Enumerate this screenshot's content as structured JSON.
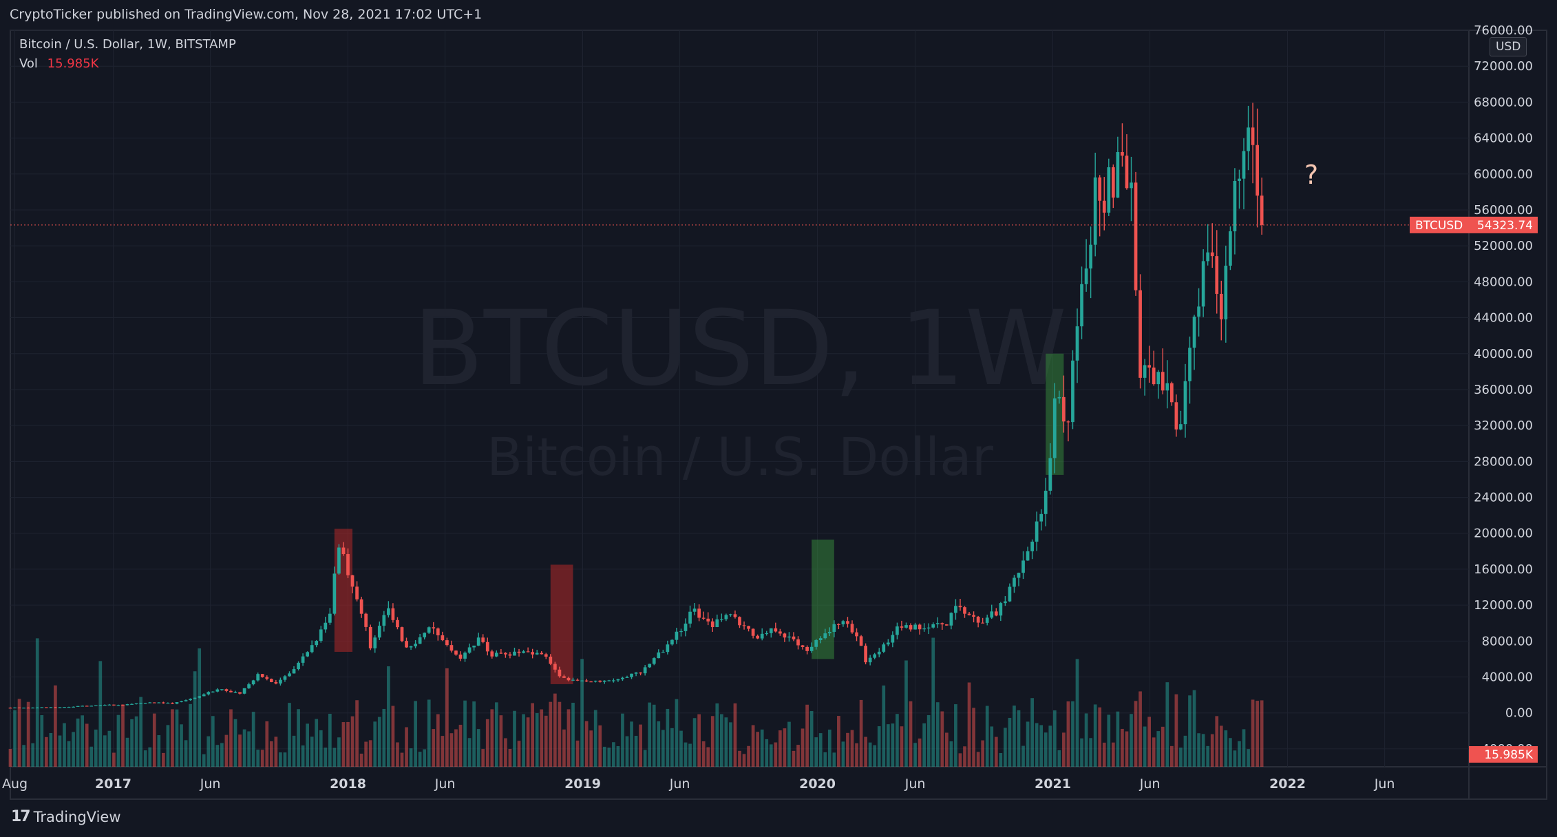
{
  "publisher_line": "CryptoTicker published on TradingView.com, Nov 28, 2021 17:02 UTC+1",
  "legend": {
    "symbol_line": "Bitcoin / U.S. Dollar, 1W, BITSTAMP",
    "vol_label": "Vol",
    "vol_value": "15.985K"
  },
  "currency_button": "USD",
  "watermark": {
    "line1": "BTCUSD, 1W",
    "line2": "Bitcoin / U.S. Dollar"
  },
  "footer_logo": "TradingView",
  "colors": {
    "up": "#26a69a",
    "down": "#ef5350",
    "background": "#131722",
    "text": "#d1d4dc",
    "grid": "#1e2330"
  },
  "chart_data": {
    "type": "candlestick",
    "price_axis": {
      "ticks": [
        "76000.00",
        "72000.00",
        "68000.00",
        "64000.00",
        "60000.00",
        "56000.00",
        "52000.00",
        "48000.00",
        "44000.00",
        "40000.00",
        "36000.00",
        "32000.00",
        "28000.00",
        "24000.00",
        "20000.00",
        "16000.00",
        "12000.00",
        "8000.00",
        "4000.00",
        "0.00",
        "-4000.00"
      ],
      "range": [
        -6000,
        76000
      ]
    },
    "time_axis": {
      "labels": [
        {
          "text": "Aug",
          "date": "2016-08-01",
          "bold": false
        },
        {
          "text": "2017",
          "date": "2017-01-01",
          "bold": true
        },
        {
          "text": "Jun",
          "date": "2017-06-01",
          "bold": false
        },
        {
          "text": "2018",
          "date": "2018-01-01",
          "bold": true
        },
        {
          "text": "Jun",
          "date": "2018-06-01",
          "bold": false
        },
        {
          "text": "2019",
          "date": "2019-01-01",
          "bold": true
        },
        {
          "text": "Jun",
          "date": "2019-06-01",
          "bold": false
        },
        {
          "text": "2020",
          "date": "2020-01-01",
          "bold": true
        },
        {
          "text": "Jun",
          "date": "2020-06-01",
          "bold": false
        },
        {
          "text": "2021",
          "date": "2021-01-01",
          "bold": true
        },
        {
          "text": "Jun",
          "date": "2021-06-01",
          "bold": false
        },
        {
          "text": "2022",
          "date": "2022-01-01",
          "bold": true
        },
        {
          "text": "Jun",
          "date": "2022-06-01",
          "bold": false
        }
      ],
      "range": [
        "2016-07-25",
        "2022-10-10"
      ]
    },
    "last_price": {
      "value": 54323.74,
      "label": "54323.74",
      "ticker": "BTCUSD"
    },
    "vol_badge": "15.985K",
    "annotation_text": "?",
    "annotation_at": {
      "date": "2022-02-07",
      "price": 60000
    },
    "highlight_boxes": [
      {
        "color": "red",
        "start": "2017-12-11",
        "end": "2018-01-08",
        "low": 6800,
        "high": 20500
      },
      {
        "color": "red",
        "start": "2018-11-12",
        "end": "2018-12-17",
        "low": 3200,
        "high": 16500
      },
      {
        "color": "green",
        "start": "2019-12-23",
        "end": "2020-01-27",
        "low": 6000,
        "high": 19300
      },
      {
        "color": "green",
        "start": "2020-12-21",
        "end": "2021-01-18",
        "low": 26500,
        "high": 40000
      }
    ],
    "keypoints": [
      [
        "2016-07-25",
        580
      ],
      [
        "2016-10-03",
        620
      ],
      [
        "2016-12-26",
        900
      ],
      [
        "2017-01-09",
        850
      ],
      [
        "2017-03-06",
        1200
      ],
      [
        "2017-04-03",
        1050
      ],
      [
        "2017-05-15",
        1800
      ],
      [
        "2017-06-12",
        2700
      ],
      [
        "2017-07-17",
        2200
      ],
      [
        "2017-08-14",
        4200
      ],
      [
        "2017-09-11",
        3200
      ],
      [
        "2017-10-09",
        4800
      ],
      [
        "2017-11-06",
        7300
      ],
      [
        "2017-12-04",
        11500
      ],
      [
        "2017-12-18",
        18500
      ],
      [
        "2018-01-15",
        13000
      ],
      [
        "2018-02-05",
        7500
      ],
      [
        "2018-03-05",
        11500
      ],
      [
        "2018-04-02",
        7000
      ],
      [
        "2018-05-07",
        9500
      ],
      [
        "2018-06-25",
        6200
      ],
      [
        "2018-07-23",
        8200
      ],
      [
        "2018-08-13",
        6400
      ],
      [
        "2018-09-24",
        6600
      ],
      [
        "2018-11-05",
        6400
      ],
      [
        "2018-11-26",
        4000
      ],
      [
        "2018-12-17",
        3600
      ],
      [
        "2019-02-11",
        3600
      ],
      [
        "2019-04-01",
        4500
      ],
      [
        "2019-05-13",
        7500
      ],
      [
        "2019-06-24",
        11500
      ],
      [
        "2019-07-22",
        9800
      ],
      [
        "2019-08-12",
        11000
      ],
      [
        "2019-09-30",
        8300
      ],
      [
        "2019-10-28",
        9300
      ],
      [
        "2019-12-16",
        7200
      ],
      [
        "2020-01-13",
        8800
      ],
      [
        "2020-02-10",
        10200
      ],
      [
        "2020-03-09",
        7800
      ],
      [
        "2020-03-16",
        5800
      ],
      [
        "2020-04-06",
        7100
      ],
      [
        "2020-05-04",
        9300
      ],
      [
        "2020-06-22",
        9500
      ],
      [
        "2020-07-20",
        9800
      ],
      [
        "2020-08-03",
        11600
      ],
      [
        "2020-09-07",
        10300
      ],
      [
        "2020-10-05",
        11000
      ],
      [
        "2020-10-26",
        13500
      ],
      [
        "2020-11-23",
        18000
      ],
      [
        "2020-12-21",
        24000
      ],
      [
        "2021-01-04",
        35000
      ],
      [
        "2021-01-25",
        32000
      ],
      [
        "2021-02-08",
        44000
      ],
      [
        "2021-02-22",
        49000
      ],
      [
        "2021-03-08",
        57500
      ],
      [
        "2021-03-29",
        58500
      ],
      [
        "2021-04-12",
        61000
      ],
      [
        "2021-05-03",
        57000
      ],
      [
        "2021-05-17",
        37500
      ],
      [
        "2021-06-14",
        38000
      ],
      [
        "2021-07-19",
        31500
      ],
      [
        "2021-08-09",
        45500
      ],
      [
        "2021-09-06",
        52000
      ],
      [
        "2021-09-20",
        43500
      ],
      [
        "2021-10-04",
        54500
      ],
      [
        "2021-10-18",
        61500
      ],
      [
        "2021-11-08",
        64500
      ],
      [
        "2021-11-22",
        54300
      ]
    ]
  }
}
